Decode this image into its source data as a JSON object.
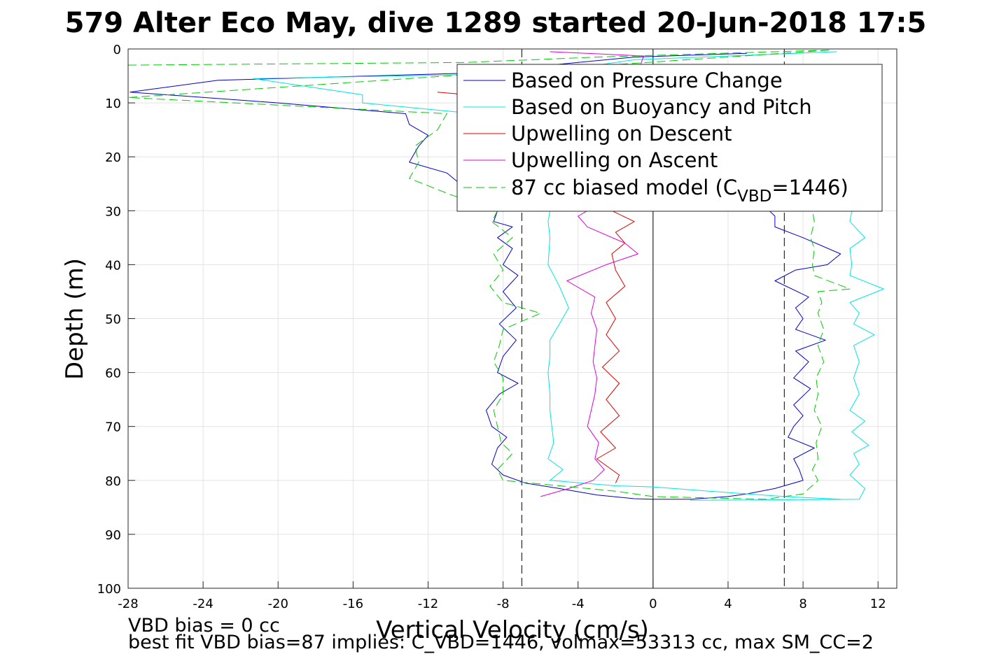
{
  "chart_data": {
    "type": "line",
    "title": "579 Alter Eco May, dive 1289 started 20-Jun-2018 17:5",
    "xlabel": "Vertical Velocity (cm/s)",
    "ylabel": "Depth (m)",
    "xlim": [
      -28,
      13
    ],
    "ylim": [
      0,
      100
    ],
    "y_reversed": true,
    "grid": true,
    "legend_position": "top-right",
    "xticks": [
      -28,
      -24,
      -20,
      -16,
      -12,
      -8,
      -4,
      0,
      4,
      8,
      12
    ],
    "yticks": [
      0,
      10,
      20,
      30,
      40,
      50,
      60,
      70,
      80,
      90,
      100
    ],
    "reference_lines": [
      {
        "x": -7,
        "style": "dashed",
        "color": "#000000"
      },
      {
        "x": 0,
        "style": "solid",
        "color": "#000000"
      },
      {
        "x": 7,
        "style": "dashed",
        "color": "#000000"
      }
    ],
    "legend": [
      {
        "label": "Based on Pressure Change",
        "color": "#0000cc",
        "dash": "none"
      },
      {
        "label": "Based on Buoyancy and Pitch",
        "color": "#00e5e5",
        "dash": "none"
      },
      {
        "label": "Upwelling on Descent",
        "color": "#e00000",
        "dash": "none"
      },
      {
        "label": "Upwelling on Ascent",
        "color": "#e000e0",
        "dash": "none"
      },
      {
        "label_main": "87 cc biased model (C",
        "label_sub": "VBD",
        "label_tail": "=1446)",
        "color": "#00cc00",
        "dash": "12,6"
      }
    ],
    "series": [
      {
        "color": "#0000cc",
        "dash": "none",
        "points": [
          [
            5,
            0.8
          ],
          [
            -1,
            1.5
          ],
          [
            -10,
            4.5
          ],
          [
            -23.2,
            5.8
          ],
          [
            -27.9,
            8
          ],
          [
            -20,
            10
          ],
          [
            -13.2,
            12
          ],
          [
            -13,
            14
          ],
          [
            -12,
            16
          ],
          [
            -12.5,
            18
          ],
          [
            -13,
            21
          ],
          [
            -11,
            23
          ],
          [
            -10.3,
            25
          ],
          [
            -9.2,
            27
          ],
          [
            -8.3,
            30
          ],
          [
            -8.5,
            32
          ],
          [
            -7.5,
            33
          ],
          [
            -8.3,
            35
          ],
          [
            -7.5,
            37
          ],
          [
            -8,
            40
          ],
          [
            -7.2,
            42
          ],
          [
            -8,
            45
          ],
          [
            -7.3,
            48
          ],
          [
            -8.2,
            51
          ],
          [
            -7.3,
            54
          ],
          [
            -8,
            57
          ],
          [
            -8.3,
            60
          ],
          [
            -7.2,
            62
          ],
          [
            -8.2,
            64
          ],
          [
            -8.9,
            67
          ],
          [
            -8.6,
            70
          ],
          [
            -7.8,
            72
          ],
          [
            -8.3,
            74
          ],
          [
            -8.6,
            77
          ],
          [
            -8,
            79
          ],
          [
            -6.8,
            80.5
          ],
          [
            -5,
            81.5
          ],
          [
            -3,
            82.7
          ],
          [
            -1,
            83.4
          ],
          [
            0,
            83.5
          ],
          [
            2,
            83.5
          ],
          [
            4,
            83
          ],
          [
            5,
            82.5
          ],
          [
            6.5,
            81.5
          ],
          [
            8,
            80
          ],
          [
            7.8,
            78
          ],
          [
            7.5,
            76
          ],
          [
            8.6,
            74
          ],
          [
            7.2,
            72
          ],
          [
            7.5,
            70
          ],
          [
            8,
            68
          ],
          [
            7.5,
            66
          ],
          [
            8.4,
            63
          ],
          [
            7.5,
            61
          ],
          [
            8.3,
            58
          ],
          [
            7.6,
            56
          ],
          [
            9.2,
            54
          ],
          [
            7.6,
            52
          ],
          [
            8,
            50
          ],
          [
            7.6,
            48
          ],
          [
            8.3,
            46
          ],
          [
            6.5,
            43
          ],
          [
            7.6,
            41
          ],
          [
            9.3,
            40
          ],
          [
            10,
            38
          ],
          [
            8,
            35
          ],
          [
            6.5,
            33
          ],
          [
            6.5,
            31
          ],
          [
            6.2,
            30
          ]
        ]
      },
      {
        "color": "#00e5e5",
        "dash": "none",
        "points": [
          [
            9.8,
            0.5
          ],
          [
            -1,
            2
          ],
          [
            -6,
            4.5
          ],
          [
            -21.3,
            5.5
          ],
          [
            -15.5,
            8.5
          ],
          [
            -15.5,
            10
          ],
          [
            -8,
            12.5
          ],
          [
            -5.5,
            30
          ],
          [
            -5.6,
            32
          ],
          [
            -5.5,
            35
          ],
          [
            -5.6,
            40
          ],
          [
            -5,
            44
          ],
          [
            -4.5,
            48
          ],
          [
            -5,
            51
          ],
          [
            -5.5,
            54
          ],
          [
            -5.5,
            57
          ],
          [
            -5.6,
            60
          ],
          [
            -5.5,
            64
          ],
          [
            -5.5,
            67
          ],
          [
            -5.4,
            70
          ],
          [
            -5.3,
            73
          ],
          [
            -5.6,
            76
          ],
          [
            -4.8,
            78
          ],
          [
            -5.5,
            80
          ],
          [
            -2,
            81
          ],
          [
            0,
            81.2
          ],
          [
            3,
            82
          ],
          [
            7,
            83
          ],
          [
            10,
            83.5
          ],
          [
            2,
            83.7
          ],
          [
            11,
            83.5
          ],
          [
            11.3,
            81.5
          ],
          [
            10.5,
            79
          ],
          [
            11,
            77
          ],
          [
            10.7,
            75
          ],
          [
            11.5,
            73.5
          ],
          [
            10.6,
            71
          ],
          [
            11.3,
            69
          ],
          [
            10.5,
            67
          ],
          [
            11,
            64
          ],
          [
            10.7,
            61
          ],
          [
            11,
            58
          ],
          [
            10.7,
            55
          ],
          [
            11.8,
            53
          ],
          [
            10.7,
            51
          ],
          [
            11,
            49
          ],
          [
            10.5,
            47
          ],
          [
            12.3,
            44.5
          ],
          [
            10.5,
            42
          ],
          [
            10.6,
            40
          ],
          [
            10.5,
            37
          ],
          [
            11.3,
            35
          ],
          [
            10.5,
            32
          ],
          [
            10.6,
            30
          ]
        ]
      },
      {
        "color": "#e00000",
        "dash": "none",
        "points": [
          [
            -11.5,
            8
          ],
          [
            -10.5,
            8.3
          ],
          [
            -2.2,
            30
          ],
          [
            -1,
            32
          ],
          [
            -2,
            34
          ],
          [
            -1.5,
            36
          ],
          [
            -2.2,
            38
          ],
          [
            -2,
            41
          ],
          [
            -1.5,
            44
          ],
          [
            -2.5,
            47
          ],
          [
            -2,
            50
          ],
          [
            -2.5,
            53
          ],
          [
            -1.8,
            56
          ],
          [
            -2.7,
            59
          ],
          [
            -1.8,
            62
          ],
          [
            -2.5,
            65
          ],
          [
            -1.8,
            68
          ],
          [
            -2.8,
            71
          ],
          [
            -2,
            74
          ],
          [
            -3,
            76
          ],
          [
            -1.8,
            79
          ],
          [
            -2,
            80.5
          ]
        ]
      },
      {
        "color": "#e000e0",
        "dash": "none",
        "points": [
          [
            -6,
            83
          ],
          [
            -4.5,
            81.5
          ],
          [
            -3.2,
            80
          ],
          [
            -2.6,
            78
          ],
          [
            -3.1,
            76
          ],
          [
            -2.9,
            73
          ],
          [
            -3.5,
            70
          ],
          [
            -3.3,
            67
          ],
          [
            -3.1,
            64
          ],
          [
            -3,
            61
          ],
          [
            -3.2,
            58
          ],
          [
            -3.1,
            55
          ],
          [
            -3,
            52
          ],
          [
            -3.3,
            49
          ],
          [
            -3.1,
            46
          ],
          [
            -4.6,
            43
          ],
          [
            -2.5,
            40
          ],
          [
            -0.8,
            38
          ],
          [
            -1.5,
            36
          ],
          [
            -3.5,
            33
          ],
          [
            -4,
            31
          ],
          [
            -3.5,
            30
          ],
          [
            -0.5,
            1.3
          ],
          [
            -5.5,
            0.5
          ]
        ]
      },
      {
        "color": "#00cc00",
        "dash": "12,6",
        "points": [
          [
            -28,
            3
          ],
          [
            -10,
            2.5
          ],
          [
            -3,
            1.5
          ],
          [
            9.5,
            0.2
          ],
          [
            -28,
            9
          ],
          [
            -11,
            12
          ],
          [
            -11.5,
            15
          ],
          [
            -12.7,
            18
          ],
          [
            -12.5,
            21
          ],
          [
            -13,
            24
          ],
          [
            -10.8,
            27
          ],
          [
            -8.3,
            30
          ],
          [
            -8.6,
            32
          ],
          [
            -7.5,
            35
          ],
          [
            -8.5,
            38
          ],
          [
            -8,
            41
          ],
          [
            -8.7,
            44
          ],
          [
            -8,
            47
          ],
          [
            -6,
            49
          ],
          [
            -8,
            52
          ],
          [
            -8.2,
            55
          ],
          [
            -8.5,
            58
          ],
          [
            -8,
            61
          ],
          [
            -8,
            64
          ],
          [
            -8.5,
            67
          ],
          [
            -8.3,
            70
          ],
          [
            -8.1,
            73
          ],
          [
            -7.5,
            75
          ],
          [
            -8.3,
            78
          ],
          [
            -8,
            80
          ],
          [
            -5,
            81
          ],
          [
            -2,
            82
          ],
          [
            0,
            83
          ],
          [
            6,
            83.5
          ],
          [
            8,
            82.5
          ],
          [
            8.8,
            80
          ],
          [
            8.5,
            78
          ],
          [
            8.8,
            76
          ],
          [
            8.7,
            73
          ],
          [
            9,
            70
          ],
          [
            8.6,
            67
          ],
          [
            8.8,
            64
          ],
          [
            8.7,
            61
          ],
          [
            9.1,
            58
          ],
          [
            8.8,
            55
          ],
          [
            9.1,
            52
          ],
          [
            8.8,
            49
          ],
          [
            9,
            47
          ],
          [
            8.8,
            45
          ],
          [
            10.5,
            44.5
          ],
          [
            8.6,
            42
          ],
          [
            8.5,
            40
          ],
          [
            8.6,
            37
          ],
          [
            8.4,
            35
          ],
          [
            8.6,
            32
          ],
          [
            8.5,
            30
          ]
        ]
      }
    ]
  },
  "footer": {
    "line1": "VBD bias = 0 cc",
    "line2": "best fit VBD bias=87 implies: C_VBD=1446, volmax=53313 cc, max SM_CC=2"
  }
}
